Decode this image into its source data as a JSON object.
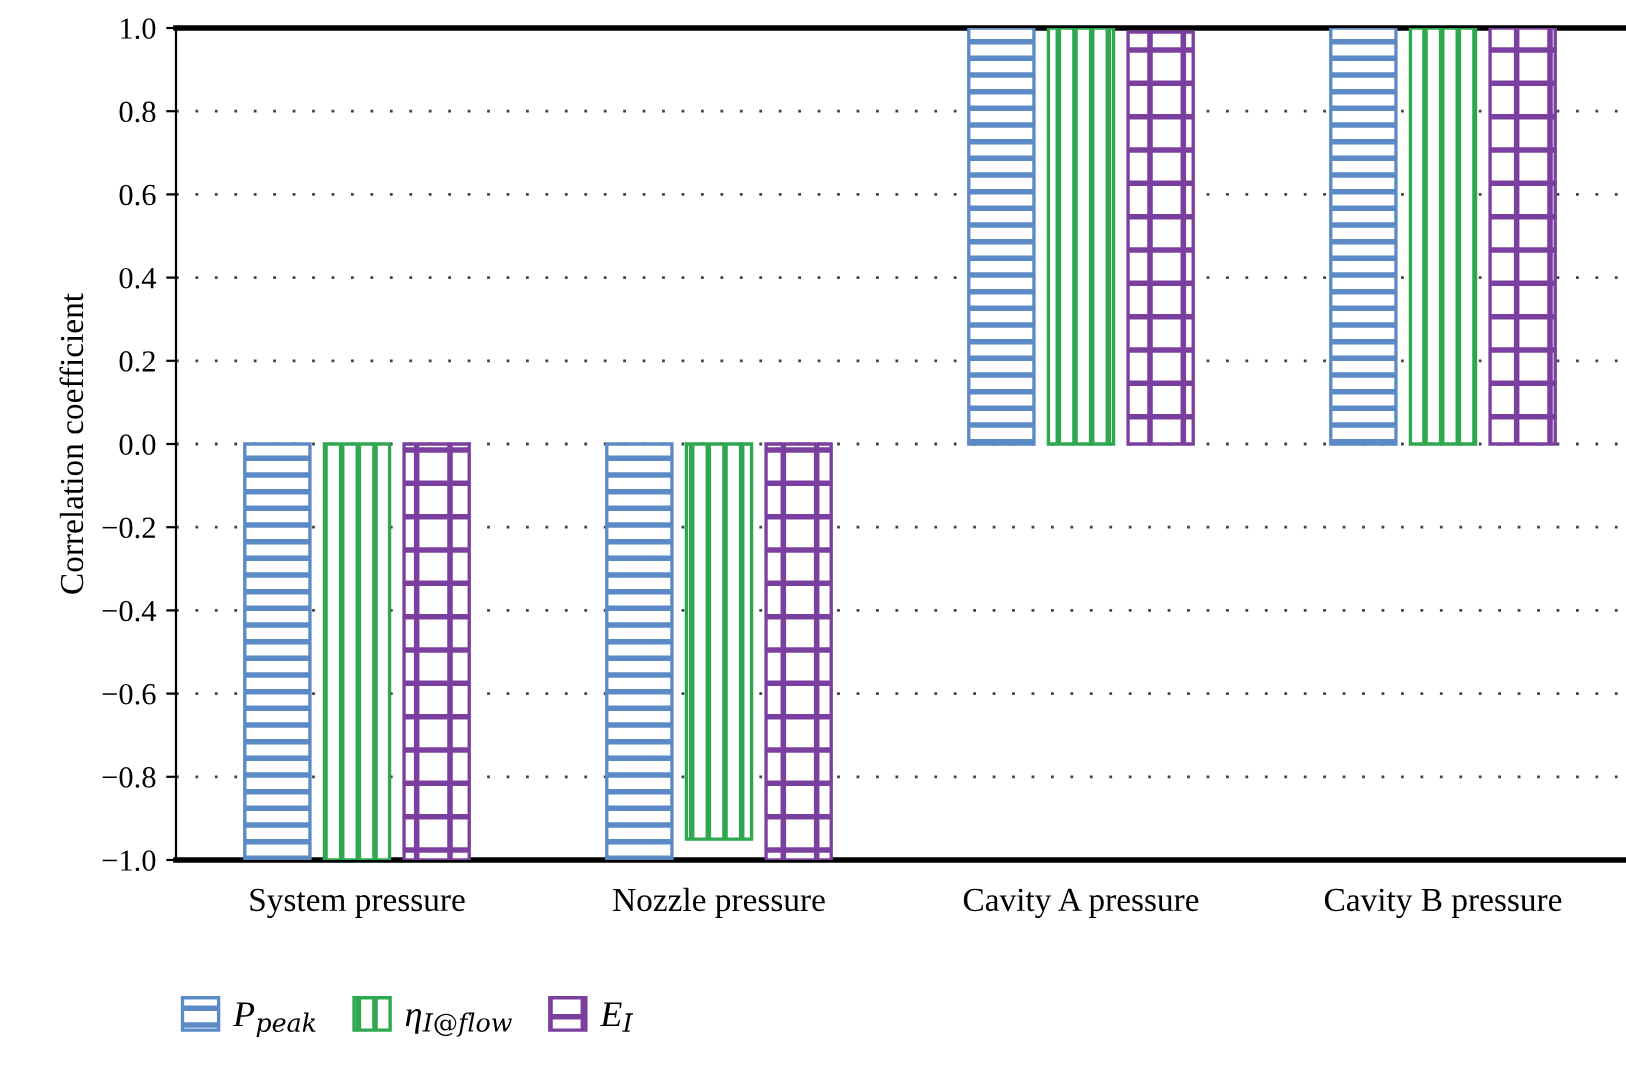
{
  "chart_data": {
    "type": "bar",
    "ylabel": "Correlation coefficient",
    "categories": [
      "System pressure",
      "Nozzle pressure",
      "Cavity A pressure",
      "Cavity B pressure"
    ],
    "series": [
      {
        "name": "P$_{peak}$",
        "color": "#5b8ac6",
        "values": [
          -1.0,
          -1.0,
          1.0,
          1.0
        ]
      },
      {
        "name": "η$_{I@flow}$",
        "color": "#2ea84f",
        "values": [
          -1.0,
          -0.95,
          1.0,
          1.0
        ]
      },
      {
        "name": "E$_{I}$",
        "color": "#7b3fa0",
        "values": [
          -1.0,
          -1.0,
          0.99,
          1.0
        ]
      }
    ],
    "ylim": [
      -1.0,
      1.0
    ],
    "yticks": [
      {
        "value": -1.0,
        "label": "−1.0"
      },
      {
        "value": -0.8,
        "label": "−0.8"
      },
      {
        "value": -0.6,
        "label": "−0.6"
      },
      {
        "value": -0.4,
        "label": "−0.4"
      },
      {
        "value": -0.2,
        "label": "−0.2"
      },
      {
        "value": 0,
        "label": "0.0"
      },
      {
        "value": 0.2,
        "label": "0.2"
      },
      {
        "value": 0.4,
        "label": "0.4"
      },
      {
        "value": 0.6,
        "label": "0.6"
      },
      {
        "value": 0.8,
        "label": "0.8"
      },
      {
        "value": 1.0,
        "label": "1.0"
      }
    ],
    "grid": "y",
    "legend": "bottom left"
  }
}
